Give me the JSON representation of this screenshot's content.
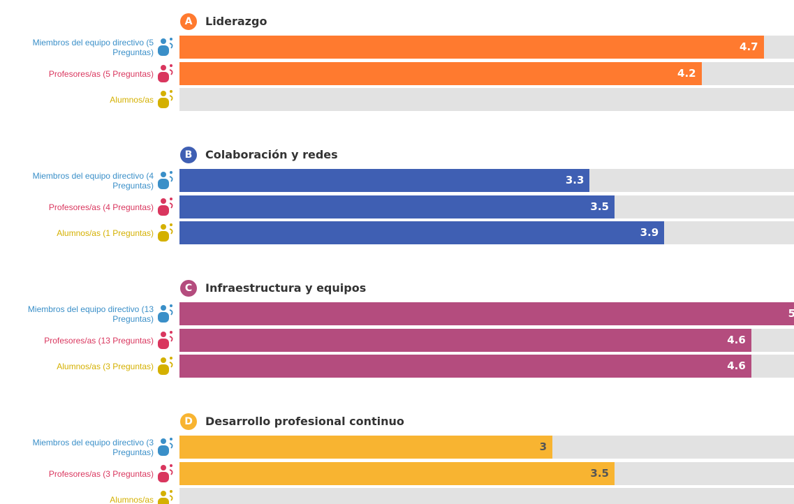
{
  "chart_data": [
    {
      "type": "bar",
      "orientation": "horizontal",
      "badge": "A",
      "title": "Liderazgo",
      "color": "#ff7a2f",
      "label_color": "#ffffff",
      "categories": [
        "Miembros del equipo directivo (5 Preguntas)",
        "Profesores/as (5 Preguntas)",
        "Alumnos/as"
      ],
      "category_colors": [
        "#3a8fc8",
        "#d9365e",
        "#d4b000"
      ],
      "values": [
        4.7,
        4.2,
        null
      ],
      "xlim": [
        0,
        5
      ]
    },
    {
      "type": "bar",
      "orientation": "horizontal",
      "badge": "B",
      "title": "Colaboración y redes",
      "color": "#3f5fb3",
      "label_color": "#ffffff",
      "categories": [
        "Miembros del equipo directivo (4 Preguntas)",
        "Profesores/as (4 Preguntas)",
        "Alumnos/as (1 Preguntas)"
      ],
      "category_colors": [
        "#3a8fc8",
        "#d9365e",
        "#d4b000"
      ],
      "values": [
        3.3,
        3.5,
        3.9
      ],
      "xlim": [
        0,
        5
      ]
    },
    {
      "type": "bar",
      "orientation": "horizontal",
      "badge": "C",
      "title": "Infraestructura y equipos",
      "color": "#b44c7e",
      "label_color": "#ffffff",
      "categories": [
        "Miembros del equipo directivo (13 Preguntas)",
        "Profesores/as (13 Preguntas)",
        "Alumnos/as (3 Preguntas)"
      ],
      "category_colors": [
        "#3a8fc8",
        "#d9365e",
        "#d4b000"
      ],
      "values": [
        5,
        4.6,
        4.6
      ],
      "xlim": [
        0,
        5
      ]
    },
    {
      "type": "bar",
      "orientation": "horizontal",
      "badge": "D",
      "title": "Desarrollo profesional continuo",
      "color": "#f8b431",
      "label_color": "#555555",
      "categories": [
        "Miembros del equipo directivo (3 Preguntas)",
        "Profesores/as (3 Preguntas)",
        "Alumnos/as"
      ],
      "category_colors": [
        "#3a8fc8",
        "#d9365e",
        "#d4b000"
      ],
      "values": [
        3,
        3.5,
        null
      ],
      "xlim": [
        0,
        5
      ]
    }
  ]
}
